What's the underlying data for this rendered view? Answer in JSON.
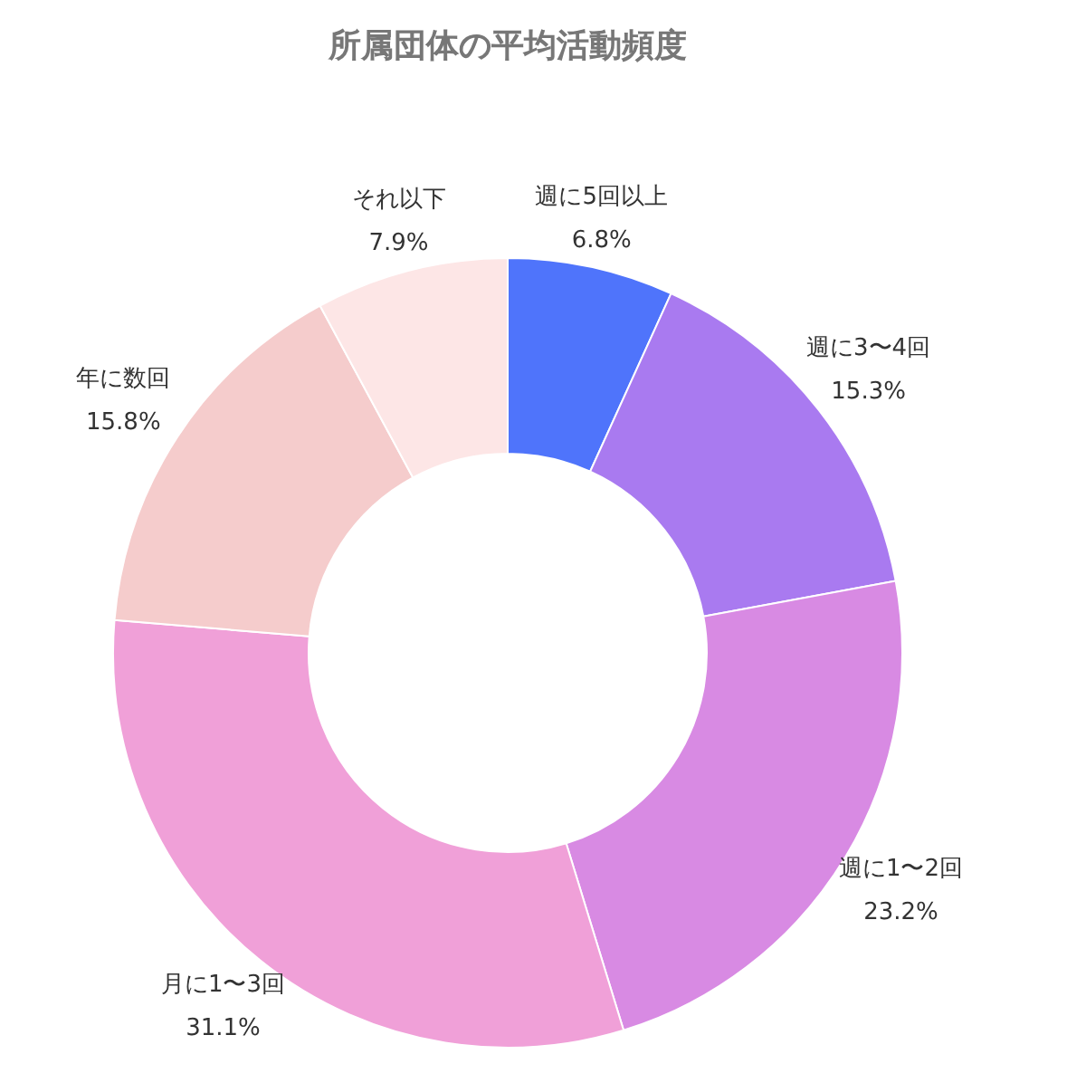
{
  "chart_data": {
    "type": "donut",
    "title": "所属団体の平均活動頻度",
    "categories": [
      "週に5回以上",
      "週に3〜4回",
      "週に1〜2回",
      "月に1〜3回",
      "年に数回",
      "それ以下"
    ],
    "values": [
      6.8,
      15.3,
      23.2,
      31.1,
      15.8,
      7.9
    ],
    "colors": [
      "#4f74fb",
      "#a97af0",
      "#d88ae3",
      "#f0a0d8",
      "#f5cccc",
      "#fde6e6"
    ],
    "value_labels": [
      "6.8%",
      "15.3%",
      "23.2%",
      "31.1%",
      "15.8%",
      "7.9%"
    ]
  }
}
